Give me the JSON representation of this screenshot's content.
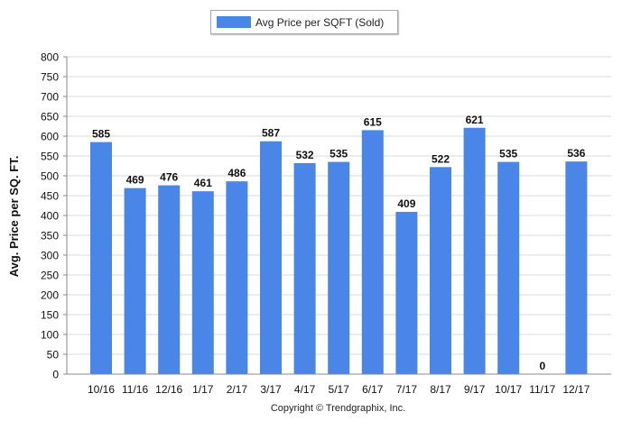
{
  "chart_data": {
    "type": "bar",
    "categories": [
      "10/16",
      "11/16",
      "12/16",
      "1/17",
      "2/17",
      "3/17",
      "4/17",
      "5/17",
      "6/17",
      "7/17",
      "8/17",
      "9/17",
      "10/17",
      "11/17",
      "12/17"
    ],
    "series": [
      {
        "name": "Avg Price per SQFT (Sold)",
        "values": [
          585,
          469,
          476,
          461,
          486,
          587,
          532,
          535,
          615,
          409,
          522,
          621,
          535,
          0,
          536
        ]
      }
    ],
    "value_labels": [
      "585",
      "469",
      "476",
      "461",
      "486",
      "587",
      "532",
      "535",
      "615",
      "409",
      "522",
      "621",
      "535",
      "0",
      "536"
    ],
    "ylabel": "Avg. Price per SQ. FT.",
    "ylim": [
      0,
      800
    ],
    "yticks": [
      0,
      50,
      100,
      150,
      200,
      250,
      300,
      350,
      400,
      450,
      500,
      550,
      600,
      650,
      700,
      750,
      800
    ],
    "grid": true,
    "legend_position": "top-center",
    "bar_color": "#4a86e8"
  },
  "legend": {
    "label": "Avg Price per SQFT (Sold)"
  },
  "footer": {
    "copyright": "Copyright © Trendgraphix, Inc."
  }
}
